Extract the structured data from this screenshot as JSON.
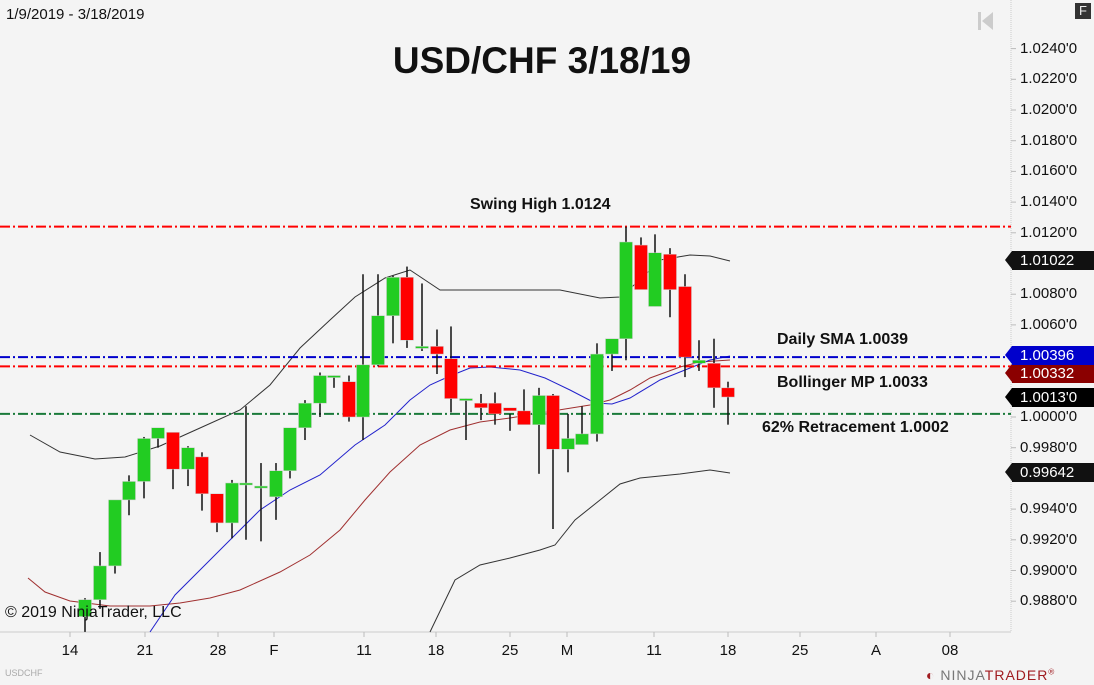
{
  "header": {
    "date_range": "1/9/2019 - 3/18/2019",
    "title": "USD/CHF 3/18/19",
    "f_button": "F",
    "scroll_end_icon": "skip-to-end-icon"
  },
  "annotations": {
    "swing_high": "Swing High 1.0124",
    "daily_sma": "Daily SMA  1.0039",
    "bollinger_mp": "Bollinger MP 1.0033",
    "retracement": "62% Retracement 1.0002"
  },
  "price_badges": {
    "upper_band": "1.01022",
    "sma": "1.00396",
    "bollinger_mid": "1.00332",
    "last_price": "1.0013'0",
    "lower_band": "0.99642"
  },
  "footer": {
    "copyright": "© 2019 NinjaTrader, LLC",
    "instrument": "USDCHF",
    "logo_light": "NINJA",
    "logo_bold": "TRADER",
    "logo_mark": "®"
  },
  "colors": {
    "bull": "#22cc22",
    "bear": "#ff0000",
    "swing_high_line": "#ff0000",
    "sma_line": "#0000cc",
    "bollinger_mid_line": "#ff0000",
    "retracement_line": "#1a7a3a",
    "bollinger_bands": "#333333",
    "sma_curve": "#2222cc",
    "mid_curve": "#a03030"
  },
  "chart_data": {
    "type": "candlestick",
    "title": "USD/CHF 3/18/19",
    "subtitle": "1/9/2019 - 3/18/2019",
    "xlabel": "",
    "ylabel": "",
    "x_tick_labels": [
      "14",
      "21",
      "28",
      "F",
      "11",
      "18",
      "25",
      "M",
      "11",
      "18",
      "25",
      "A",
      "08"
    ],
    "y_tick_labels": [
      "1.0240'0",
      "1.0220'0",
      "1.0200'0",
      "1.0180'0",
      "1.0160'0",
      "1.0140'0",
      "1.0120'0",
      "1.0080'0",
      "1.0060'0",
      "1.0000'0",
      "0.9980'0",
      "0.9940'0",
      "0.9920'0",
      "0.9900'0",
      "0.9880'0"
    ],
    "ylim": [
      0.9866,
      1.0252
    ],
    "grid": false,
    "horizontal_lines": [
      {
        "label": "Swing High",
        "value": 1.0124,
        "color": "red",
        "style": "dash-dot"
      },
      {
        "label": "Daily SMA",
        "value": 1.0039,
        "color": "blue",
        "style": "dash-dot"
      },
      {
        "label": "Bollinger MP",
        "value": 1.0033,
        "color": "red",
        "style": "dash-dot"
      },
      {
        "label": "62% Retracement",
        "value": 1.0002,
        "color": "green",
        "style": "dash-dot"
      }
    ],
    "candles": [
      {
        "x": 85,
        "o": 0.987,
        "h": 0.9882,
        "l": 0.986,
        "c": 0.9881
      },
      {
        "x": 100,
        "o": 0.9881,
        "h": 0.9912,
        "l": 0.9875,
        "c": 0.9903
      },
      {
        "x": 115,
        "o": 0.9903,
        "h": 0.9945,
        "l": 0.9898,
        "c": 0.9946
      },
      {
        "x": 129,
        "o": 0.9946,
        "h": 0.9962,
        "l": 0.9936,
        "c": 0.9958
      },
      {
        "x": 144,
        "o": 0.9958,
        "h": 0.9987,
        "l": 0.9947,
        "c": 0.9986
      },
      {
        "x": 158,
        "o": 0.9986,
        "h": 0.9992,
        "l": 0.998,
        "c": 0.9993
      },
      {
        "x": 173,
        "o": 0.999,
        "h": 0.9988,
        "l": 0.9953,
        "c": 0.9966
      },
      {
        "x": 188,
        "o": 0.9966,
        "h": 0.9981,
        "l": 0.9955,
        "c": 0.998
      },
      {
        "x": 202,
        "o": 0.9974,
        "h": 0.9977,
        "l": 0.9939,
        "c": 0.995
      },
      {
        "x": 217,
        "o": 0.995,
        "h": 0.9938,
        "l": 0.9925,
        "c": 0.9931
      },
      {
        "x": 232,
        "o": 0.9931,
        "h": 0.9959,
        "l": 0.9921,
        "c": 0.9957
      },
      {
        "x": 246,
        "o": 0.9957,
        "h": 1.0007,
        "l": 0.992,
        "c": 0.9957
      },
      {
        "x": 261,
        "o": 0.9955,
        "h": 0.997,
        "l": 0.9919,
        "c": 0.9955
      },
      {
        "x": 276,
        "o": 0.9948,
        "h": 0.997,
        "l": 0.9933,
        "c": 0.9965
      },
      {
        "x": 290,
        "o": 0.9965,
        "h": 0.9989,
        "l": 0.996,
        "c": 0.9993
      },
      {
        "x": 305,
        "o": 0.9993,
        "h": 1.0011,
        "l": 0.9985,
        "c": 1.0009
      },
      {
        "x": 320,
        "o": 1.0009,
        "h": 1.0029,
        "l": 1.0,
        "c": 1.0027
      },
      {
        "x": 334,
        "o": 1.0027,
        "h": 1.0027,
        "l": 1.0019,
        "c": 1.0027
      },
      {
        "x": 349,
        "o": 1.0023,
        "h": 1.0027,
        "l": 0.9997,
        "c": 1.0
      },
      {
        "x": 363,
        "o": 1.0,
        "h": 1.0093,
        "l": 0.9985,
        "c": 1.0034
      },
      {
        "x": 378,
        "o": 1.0034,
        "h": 1.0093,
        "l": 1.0033,
        "c": 1.0066
      },
      {
        "x": 393,
        "o": 1.0066,
        "h": 1.0092,
        "l": 1.0048,
        "c": 1.0091
      },
      {
        "x": 407,
        "o": 1.0091,
        "h": 1.0098,
        "l": 1.0045,
        "c": 1.005
      },
      {
        "x": 422,
        "o": 1.0045,
        "h": 1.0087,
        "l": 1.0043,
        "c": 1.0046
      },
      {
        "x": 437,
        "o": 1.0046,
        "h": 1.0057,
        "l": 1.0028,
        "c": 1.0041
      },
      {
        "x": 451,
        "o": 1.0038,
        "h": 1.0059,
        "l": 1.0003,
        "c": 1.0012
      },
      {
        "x": 466,
        "o": 1.0012,
        "h": 1.0012,
        "l": 0.9985,
        "c": 1.0012
      },
      {
        "x": 481,
        "o": 1.0009,
        "h": 1.0015,
        "l": 0.9998,
        "c": 1.0006
      },
      {
        "x": 495,
        "o": 1.0009,
        "h": 1.0016,
        "l": 0.9995,
        "c": 1.0002
      },
      {
        "x": 510,
        "o": 1.0006,
        "h": 1.0002,
        "l": 0.9991,
        "c": 1.0004
      },
      {
        "x": 524,
        "o": 1.0004,
        "h": 1.0018,
        "l": 0.9996,
        "c": 0.9995
      },
      {
        "x": 539,
        "o": 0.9995,
        "h": 1.0019,
        "l": 0.9963,
        "c": 1.0014
      },
      {
        "x": 553,
        "o": 1.0014,
        "h": 1.0015,
        "l": 0.9927,
        "c": 0.9979
      },
      {
        "x": 568,
        "o": 0.9979,
        "h": 1.0002,
        "l": 0.9964,
        "c": 0.9986
      },
      {
        "x": 582,
        "o": 0.9982,
        "h": 1.0007,
        "l": 0.9984,
        "c": 0.9989
      },
      {
        "x": 597,
        "o": 0.9989,
        "h": 1.0048,
        "l": 0.9984,
        "c": 1.0041
      },
      {
        "x": 612,
        "o": 1.0041,
        "h": 1.0046,
        "l": 1.003,
        "c": 1.0051
      },
      {
        "x": 626,
        "o": 1.0051,
        "h": 1.0124,
        "l": 1.0037,
        "c": 1.0114
      },
      {
        "x": 641,
        "o": 1.0112,
        "h": 1.0117,
        "l": 1.0093,
        "c": 1.0083
      },
      {
        "x": 655,
        "o": 1.0072,
        "h": 1.0119,
        "l": 1.0072,
        "c": 1.0107
      },
      {
        "x": 670,
        "o": 1.0106,
        "h": 1.011,
        "l": 1.0065,
        "c": 1.0083
      },
      {
        "x": 685,
        "o": 1.0085,
        "h": 1.0093,
        "l": 1.0026,
        "c": 1.0039
      },
      {
        "x": 699,
        "o": 1.0035,
        "h": 1.005,
        "l": 1.003,
        "c": 1.0037
      },
      {
        "x": 714,
        "o": 1.0035,
        "h": 1.0051,
        "l": 1.0006,
        "c": 1.0019
      },
      {
        "x": 728,
        "o": 1.0019,
        "h": 1.0023,
        "l": 0.9995,
        "c": 1.0013
      }
    ],
    "series": [
      {
        "name": "Bollinger Upper",
        "color": "#333333"
      },
      {
        "name": "Bollinger Lower",
        "color": "#333333"
      },
      {
        "name": "SMA",
        "color": "#2222cc"
      },
      {
        "name": "Bollinger MP",
        "color": "#a03030"
      }
    ],
    "last_values": {
      "upper": 1.01022,
      "sma": 1.00396,
      "mid": 1.00332,
      "close": 1.0013,
      "lower": 0.99642
    }
  }
}
